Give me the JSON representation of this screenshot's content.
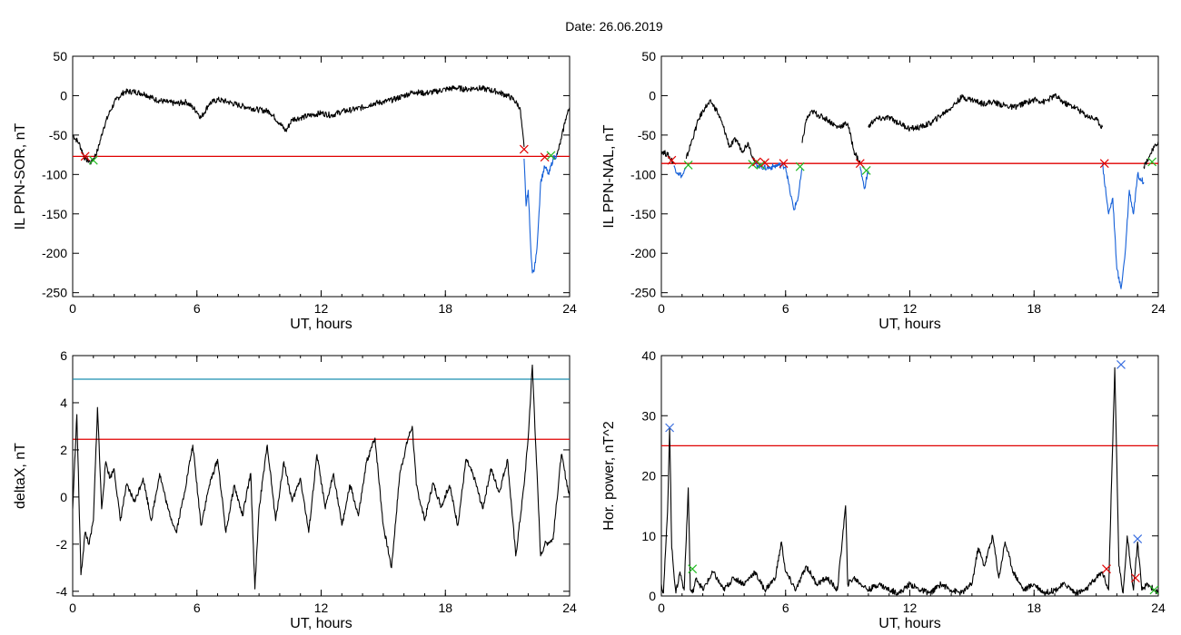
{
  "title": "Date:  26.06.2019",
  "colors": {
    "trace": "#000000",
    "threshold_red": "#e00000",
    "threshold_cyan": "#1b8fb0",
    "highlight_blue": "#1560d8",
    "marker_red": "#e00000",
    "marker_green": "#22bb22",
    "marker_blue": "#3a6fe0"
  },
  "chart_data": [
    {
      "id": "sor",
      "type": "line",
      "xlabel": "UT, hours",
      "ylabel": "IL PPN-SOR, nT",
      "xlim": [
        0,
        24
      ],
      "ylim": [
        -255,
        50
      ],
      "xticks": [
        0,
        6,
        12,
        18,
        24
      ],
      "yticks": [
        50,
        0,
        -50,
        -100,
        -150,
        -200,
        -250
      ],
      "threshold": {
        "y": -77,
        "color": "red"
      },
      "series": [
        {
          "color": "black",
          "x": [
            0,
            0.3,
            0.6,
            0.9,
            1.2,
            1.5,
            1.8,
            2.1,
            2.5,
            3,
            3.5,
            4,
            4.5,
            5,
            5.5,
            6,
            6.2,
            6.6,
            7,
            7.5,
            8,
            8.5,
            9,
            9.5,
            10,
            10.3,
            10.6,
            11,
            11.5,
            12,
            12.5,
            13,
            13.5,
            14,
            14.5,
            15,
            15.5,
            16,
            16.5,
            17,
            17.5,
            18,
            18.5,
            19,
            19.5,
            20,
            20.5,
            21,
            21.3,
            21.6,
            21.8
          ],
          "y": [
            -50,
            -60,
            -80,
            -85,
            -70,
            -40,
            -20,
            -5,
            5,
            5,
            2,
            -5,
            -8,
            -10,
            -8,
            -20,
            -28,
            -10,
            -5,
            -8,
            -12,
            -15,
            -18,
            -20,
            -35,
            -45,
            -30,
            -28,
            -25,
            -22,
            -25,
            -20,
            -18,
            -15,
            -10,
            -8,
            -5,
            0,
            5,
            3,
            5,
            8,
            10,
            8,
            10,
            8,
            5,
            0,
            -5,
            -15,
            -65
          ]
        },
        {
          "color": "blue",
          "x": [
            21.8,
            21.9,
            22.0,
            22.1,
            22.2,
            22.3,
            22.4,
            22.5,
            22.6,
            22.8,
            23.0,
            23.2,
            23.4
          ],
          "y": [
            -80,
            -140,
            -120,
            -180,
            -225,
            -220,
            -200,
            -160,
            -110,
            -90,
            -100,
            -80,
            -75
          ]
        },
        {
          "color": "black",
          "x": [
            23.4,
            23.6,
            23.8,
            24
          ],
          "y": [
            -75,
            -55,
            -30,
            -15
          ]
        }
      ],
      "markers": [
        {
          "x": 0.6,
          "y": -77,
          "color": "red"
        },
        {
          "x": 1.0,
          "y": -82,
          "color": "green"
        },
        {
          "x": 21.8,
          "y": -68,
          "color": "red"
        },
        {
          "x": 22.8,
          "y": -78,
          "color": "red"
        },
        {
          "x": 23.1,
          "y": -76,
          "color": "green"
        }
      ]
    },
    {
      "id": "nal",
      "type": "line",
      "xlabel": "UT, hours",
      "ylabel": "IL PPN-NAL, nT",
      "xlim": [
        0,
        24
      ],
      "ylim": [
        -255,
        50
      ],
      "xticks": [
        0,
        6,
        12,
        18,
        24
      ],
      "yticks": [
        50,
        0,
        -50,
        -100,
        -150,
        -200,
        -250
      ],
      "threshold": {
        "y": -86,
        "color": "red"
      },
      "series": [
        {
          "color": "black",
          "x": [
            0,
            0.3,
            0.6
          ],
          "y": [
            -70,
            -75,
            -85
          ]
        },
        {
          "color": "blue",
          "x": [
            0.6,
            0.8,
            1.0,
            1.2
          ],
          "y": [
            -90,
            -98,
            -102,
            -92
          ]
        },
        {
          "color": "black",
          "x": [
            1.2,
            1.5,
            1.8,
            2.1,
            2.4,
            2.7,
            3.0,
            3.3,
            3.6,
            3.9,
            4.2,
            4.5
          ],
          "y": [
            -80,
            -55,
            -30,
            -15,
            -8,
            -20,
            -40,
            -65,
            -55,
            -70,
            -60,
            -85
          ]
        },
        {
          "color": "blue",
          "x": [
            4.5,
            4.8,
            5.1,
            5.4,
            5.7,
            6.0,
            6.2,
            6.4,
            6.6,
            6.8
          ],
          "y": [
            -86,
            -90,
            -92,
            -90,
            -88,
            -90,
            -120,
            -145,
            -130,
            -92
          ]
        },
        {
          "color": "black",
          "x": [
            6.8,
            7.0,
            7.3,
            7.6,
            8.0,
            8.5,
            9.0,
            9.3,
            9.6
          ],
          "y": [
            -60,
            -30,
            -20,
            -25,
            -30,
            -40,
            -35,
            -70,
            -86
          ]
        },
        {
          "color": "blue",
          "x": [
            9.6,
            9.8,
            10.0
          ],
          "y": [
            -90,
            -118,
            -95
          ]
        },
        {
          "color": "black",
          "x": [
            10.0,
            10.3,
            11.0,
            11.5,
            12.0,
            12.5,
            13.0,
            13.5,
            14.0,
            14.5,
            15.0,
            15.5,
            16.0,
            16.5,
            17.0,
            17.5,
            18.0,
            18.5,
            19.0,
            19.5,
            20.0,
            20.5,
            21.0,
            21.3
          ],
          "y": [
            -40,
            -30,
            -28,
            -35,
            -42,
            -40,
            -35,
            -25,
            -15,
            -2,
            -5,
            -10,
            -8,
            -12,
            -15,
            -10,
            -5,
            -8,
            0,
            -10,
            -15,
            -25,
            -30,
            -40
          ]
        },
        {
          "color": "blue",
          "x": [
            21.3,
            21.6,
            21.8,
            22.0,
            22.2,
            22.4,
            22.6,
            22.8,
            23.0,
            23.3
          ],
          "y": [
            -86,
            -150,
            -130,
            -220,
            -245,
            -200,
            -120,
            -150,
            -100,
            -110
          ]
        },
        {
          "color": "black",
          "x": [
            23.3,
            23.6,
            24
          ],
          "y": [
            -90,
            -75,
            -58
          ]
        }
      ],
      "markers": [
        {
          "x": 0.5,
          "y": -82,
          "color": "red"
        },
        {
          "x": 1.3,
          "y": -88,
          "color": "green"
        },
        {
          "x": 4.4,
          "y": -87,
          "color": "green"
        },
        {
          "x": 4.6,
          "y": -84,
          "color": "red"
        },
        {
          "x": 4.8,
          "y": -88,
          "color": "green"
        },
        {
          "x": 5.0,
          "y": -85,
          "color": "red"
        },
        {
          "x": 5.9,
          "y": -86,
          "color": "red"
        },
        {
          "x": 6.7,
          "y": -90,
          "color": "green"
        },
        {
          "x": 9.6,
          "y": -86,
          "color": "red"
        },
        {
          "x": 9.9,
          "y": -95,
          "color": "green"
        },
        {
          "x": 21.4,
          "y": -86,
          "color": "red"
        },
        {
          "x": 23.7,
          "y": -84,
          "color": "green"
        }
      ]
    },
    {
      "id": "deltax",
      "type": "line",
      "xlabel": "UT, hours",
      "ylabel": "deltaX, nT",
      "xlim": [
        0,
        24
      ],
      "ylim": [
        -4.2,
        6
      ],
      "xticks": [
        0,
        6,
        12,
        18,
        24
      ],
      "yticks": [
        6,
        4,
        2,
        0,
        -2,
        -4
      ],
      "thresholds": [
        {
          "y": 5.0,
          "color": "cyan"
        },
        {
          "y": 2.45,
          "color": "red"
        }
      ],
      "series": [
        {
          "color": "black",
          "x": [
            0,
            0.2,
            0.4,
            0.6,
            0.8,
            1.0,
            1.2,
            1.4,
            1.6,
            1.8,
            2.0,
            2.3,
            2.6,
            3.0,
            3.4,
            3.8,
            4.2,
            4.6,
            5.0,
            5.4,
            5.8,
            6.2,
            6.6,
            7.0,
            7.4,
            7.8,
            8.2,
            8.6,
            8.8,
            9.0,
            9.4,
            9.8,
            10.2,
            10.6,
            11.0,
            11.4,
            11.8,
            12.2,
            12.6,
            13.0,
            13.4,
            13.8,
            14.2,
            14.6,
            15.0,
            15.4,
            15.8,
            16.2,
            16.4,
            16.6,
            17.0,
            17.4,
            17.8,
            18.2,
            18.6,
            19.0,
            19.4,
            19.8,
            20.2,
            20.6,
            21.0,
            21.4,
            21.8,
            22.0,
            22.2,
            22.4,
            22.6,
            22.8,
            23.2,
            23.6,
            24
          ],
          "y": [
            -0.5,
            3.5,
            -3.3,
            -1.5,
            -2.0,
            -1.0,
            3.8,
            -0.5,
            1.5,
            0.8,
            1.2,
            -1.0,
            0.5,
            -0.2,
            0.8,
            -1.0,
            1.0,
            -0.5,
            -1.5,
            0.2,
            2.2,
            -1.2,
            0.5,
            1.6,
            -1.5,
            0.5,
            -0.8,
            1.0,
            -3.9,
            -0.5,
            2.2,
            -1.0,
            1.5,
            -0.2,
            0.8,
            -1.5,
            1.8,
            -0.5,
            1.0,
            -1.2,
            0.5,
            -0.8,
            1.5,
            2.5,
            -1.2,
            -3.0,
            1.0,
            2.5,
            3.0,
            0.5,
            -1.0,
            0.6,
            -0.4,
            0.5,
            -1.2,
            1.6,
            0.8,
            -0.5,
            1.2,
            0.2,
            1.6,
            -2.5,
            0.5,
            2.5,
            5.6,
            1.5,
            -2.5,
            -2.0,
            -1.8,
            1.8,
            0.0
          ]
        }
      ]
    },
    {
      "id": "power",
      "type": "line",
      "xlabel": "UT, hours",
      "ylabel": "Hor. power, nT^2",
      "xlim": [
        0,
        24
      ],
      "ylim": [
        0,
        40
      ],
      "xticks": [
        0,
        6,
        12,
        18,
        24
      ],
      "yticks": [
        40,
        30,
        20,
        10,
        0
      ],
      "threshold": {
        "y": 25,
        "color": "red"
      },
      "series": [
        {
          "color": "black",
          "x": [
            0,
            0.1,
            0.3,
            0.4,
            0.5,
            0.7,
            0.9,
            1.1,
            1.3,
            1.4,
            1.5,
            1.7,
            2.0,
            2.5,
            3.0,
            3.5,
            4.0,
            4.5,
            5.0,
            5.5,
            5.8,
            6.0,
            6.5,
            7.0,
            7.5,
            8.0,
            8.5,
            8.9,
            9.0,
            9.3,
            10.0,
            10.5,
            11.0,
            11.5,
            12.0,
            12.5,
            13.0,
            13.5,
            14.0,
            14.5,
            15.0,
            15.3,
            15.6,
            16.0,
            16.3,
            16.6,
            17.0,
            17.5,
            18.0,
            18.5,
            19.0,
            19.5,
            20.0,
            20.5,
            21.0,
            21.3,
            21.6,
            21.9,
            22.1,
            22.3,
            22.5,
            22.8,
            23.0,
            23.2,
            23.5,
            23.8,
            24
          ],
          "y": [
            2,
            0.5,
            14,
            28,
            8,
            0.5,
            4,
            1,
            18,
            1,
            0.5,
            3,
            1,
            4,
            1,
            3,
            2,
            4,
            1,
            3,
            9,
            4,
            1,
            5,
            2,
            3,
            1,
            15,
            2,
            3,
            1,
            2,
            1,
            0.5,
            2,
            1,
            0.5,
            2,
            1,
            0.5,
            2,
            8,
            5,
            10,
            3,
            9,
            4,
            1,
            2,
            0.5,
            1,
            2,
            0.5,
            1,
            3,
            4,
            1,
            38,
            5,
            0.5,
            10,
            1,
            9,
            1,
            2,
            1,
            0.5
          ]
        }
      ],
      "markers": [
        {
          "x": 0.4,
          "y": 28,
          "color": "blue"
        },
        {
          "x": 1.5,
          "y": 4.5,
          "color": "green"
        },
        {
          "x": 21.5,
          "y": 4.5,
          "color": "red"
        },
        {
          "x": 22.2,
          "y": 38.5,
          "color": "blue"
        },
        {
          "x": 22.9,
          "y": 3.0,
          "color": "red"
        },
        {
          "x": 23.0,
          "y": 9.5,
          "color": "blue"
        },
        {
          "x": 23.8,
          "y": 1.0,
          "color": "green"
        }
      ]
    }
  ]
}
